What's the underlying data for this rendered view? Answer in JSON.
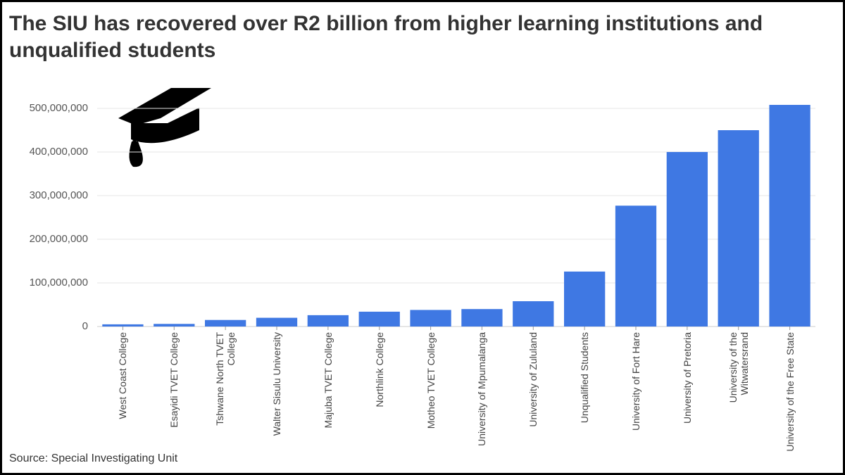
{
  "chart_data": {
    "type": "bar",
    "title": "The SIU has recovered over R2 billion from higher learning institutions and unqualified students",
    "source": "Source: Special Investigating Unit",
    "categories": [
      "West Coast College",
      "Esayidi TVET College",
      "Tshwane North TVET College",
      "Walter Sisulu University",
      "Majuba TVET College",
      "Northlink College",
      "Motheo TVET College",
      "University of Mpumalanga",
      "University of Zululand",
      "Unqualified Students",
      "University of Fort Hare",
      "University of Pretoria",
      "University of the Witwatersrand",
      "University of the Free State"
    ],
    "values": [
      5000000,
      6000000,
      15000000,
      20000000,
      26000000,
      34000000,
      38000000,
      40000000,
      58000000,
      126000000,
      277000000,
      400000000,
      450000000,
      508000000
    ],
    "color": "#3f78e3",
    "ylim": [
      0,
      550000000
    ],
    "yticks": [
      0,
      {
        "value": 100000000,
        "label": "100,000,000"
      },
      {
        "value": 200000000,
        "label": "200,000,000"
      },
      {
        "value": 300000000,
        "label": "300,000,000"
      },
      {
        "value": 400000000,
        "label": "400,000,000"
      },
      {
        "value": 500000000,
        "label": "500,000,000"
      }
    ],
    "grid": true
  }
}
